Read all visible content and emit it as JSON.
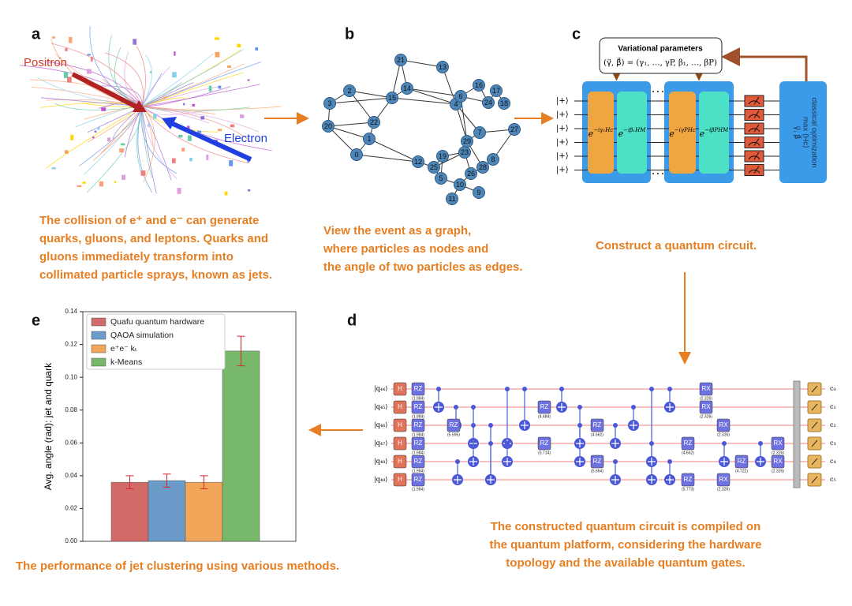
{
  "panel_a": {
    "letter": "a",
    "positron": "Positron",
    "electron": "Electron",
    "caption": [
      "The collision of e⁺ and e⁻ can generate",
      "quarks, gluons, and leptons. Quarks and",
      "gluons immediately transform into",
      "collimated particle sprays, known as jets."
    ]
  },
  "panel_b": {
    "letter": "b",
    "nodes": [
      "0",
      "1",
      "2",
      "3",
      "4",
      "5",
      "6",
      "7",
      "8",
      "9",
      "10",
      "11",
      "12",
      "13",
      "14",
      "15",
      "16",
      "17",
      "18",
      "19",
      "20",
      "21",
      "22",
      "23",
      "24",
      "25",
      "26",
      "27",
      "28",
      "29"
    ],
    "caption": [
      "View the event as a graph,",
      "where particles as nodes and",
      "the angle of two particles as edges."
    ]
  },
  "panel_c": {
    "letter": "c",
    "params_title": "Variational parameters",
    "params_formula": "(γ⃗, β⃗) = (γ₁, …, γP, β₁, …, βP)",
    "plus_state": "|+⟩",
    "gates": [
      {
        "base": "e",
        "exp": "−iγ₁Hc"
      },
      {
        "base": "e",
        "exp": "−iβ₁HM"
      },
      {
        "base": "e",
        "exp": "−iγPHc"
      },
      {
        "base": "e",
        "exp": "−iβPHM"
      }
    ],
    "optimizer": [
      "classical optimization",
      "max ⟨Hc⟩",
      "γ⃗, β⃗"
    ],
    "caption": [
      "Construct a quantum circuit."
    ]
  },
  "panel_d": {
    "letter": "d",
    "qubits": [
      "|q₄₄⟩",
      "|q₄₅⟩",
      "|q₄₆⟩",
      "|q₄₇⟩",
      "|q₄₈⟩",
      "|q₄₉⟩"
    ],
    "clbits": [
      "c₀",
      "c₁",
      "c₂",
      "c₃",
      "c₄",
      "c₅"
    ],
    "gates": [
      {
        "label": "H"
      },
      {
        "label": "H"
      },
      {
        "label": "H"
      },
      {
        "label": "H"
      },
      {
        "label": "H"
      },
      {
        "label": "H"
      },
      {
        "label": "RZ",
        "param": "(1.984)"
      },
      {
        "label": "RZ",
        "param": "(1.984)"
      },
      {
        "label": "RZ",
        "param": "(1.984)"
      },
      {
        "label": "RZ",
        "param": "(1.984)"
      },
      {
        "label": "RZ",
        "param": "(1.984)"
      },
      {
        "label": "RZ",
        "param": "(1.984)"
      },
      {
        "label": "RZ",
        "param": "(5.595)"
      },
      {
        "label": "RZ",
        "param": "(4.484)"
      },
      {
        "label": "RZ",
        "param": "(5.714)"
      },
      {
        "label": "RZ",
        "param": "(4.662)"
      },
      {
        "label": "RZ",
        "param": "(5.664)"
      },
      {
        "label": "RZ",
        "param": "(4.662)"
      },
      {
        "label": "RZ",
        "param": "(5.773)"
      },
      {
        "label": "RX",
        "param": "(2.326)"
      },
      {
        "label": "RX",
        "param": "(2.326)"
      },
      {
        "label": "RX",
        "param": "(2.326)"
      },
      {
        "label": "RX",
        "param": "(2.326)"
      },
      {
        "label": "RZ",
        "param": "(4.722)"
      },
      {
        "label": "RX",
        "param": "(2.326)"
      },
      {
        "label": "RX",
        "param": "(2.326)"
      }
    ],
    "caption": [
      "The constructed quantum circuit is compiled on",
      "the quantum platform, considering the hardware",
      "topology and the available quantum gates."
    ]
  },
  "panel_e": {
    "letter": "e",
    "caption": [
      "The performance of jet clustering using various methods."
    ]
  },
  "chart_data": {
    "type": "bar",
    "ylabel": "Avg. angle (rad): jet and quark",
    "categories": [
      null
    ],
    "ylim": [
      0,
      0.14
    ],
    "yticks": [
      {
        "value": 0,
        "label": "0.00"
      },
      {
        "value": 0.02,
        "label": "0.02"
      },
      {
        "value": 0.04,
        "label": "0.04"
      },
      {
        "value": 0.06,
        "label": "0.06"
      },
      {
        "value": 0.08,
        "label": "0.08"
      },
      {
        "value": 0.1,
        "label": "0.10"
      },
      {
        "value": 0.12,
        "label": "0.12"
      },
      {
        "value": 0.14,
        "label": "0.14"
      }
    ],
    "legend": "upper left",
    "error_color": "#d62728",
    "series": [
      {
        "name": "Quafu quantum hardware",
        "color": "#d36a6a",
        "values": [
          0.036
        ],
        "errors": [
          0.004
        ]
      },
      {
        "name": "QAOA simulation",
        "color": "#6a9bc9",
        "values": [
          0.037
        ],
        "errors": [
          0.004
        ]
      },
      {
        "name": "e⁺e⁻ kₜ",
        "color": "#f2a65a",
        "values": [
          0.036
        ],
        "errors": [
          0.004
        ]
      },
      {
        "name": "k-Means",
        "color": "#78b86a",
        "values": [
          0.116
        ],
        "errors": [
          0.009
        ]
      }
    ]
  }
}
